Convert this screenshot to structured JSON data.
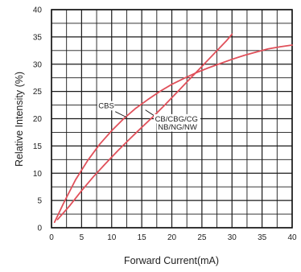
{
  "chart_data": {
    "type": "line",
    "xlabel": "Forward Current(mA)",
    "ylabel": "Relative Intensity (%)",
    "xlim": [
      0,
      40
    ],
    "ylim": [
      0,
      40
    ],
    "xticks": [
      "0",
      "5",
      "10",
      "15",
      "20",
      "25",
      "30",
      "35",
      "40"
    ],
    "yticks": [
      "0",
      "5",
      "10",
      "15",
      "20",
      "25",
      "30",
      "35",
      "40"
    ],
    "grid": true,
    "line_color": "#e0505a",
    "series": [
      {
        "name": "CBS",
        "x": [
          0.5,
          2,
          4,
          6,
          8,
          10,
          12,
          14,
          16,
          18,
          20,
          22,
          24,
          26,
          28,
          30,
          32,
          34,
          36,
          38,
          40
        ],
        "y": [
          1,
          4.5,
          8.8,
          12.3,
          15.3,
          17.8,
          20,
          21.9,
          23.5,
          25,
          26.3,
          27.4,
          28.4,
          29.3,
          30.1,
          30.9,
          31.6,
          32.2,
          32.8,
          33.2,
          33.5
        ]
      },
      {
        "name": "CB/CBG/CG NB/NG/NW",
        "x": [
          1,
          3,
          5,
          7,
          9,
          11,
          13,
          15,
          17,
          19,
          21,
          23,
          25,
          27,
          29,
          30
        ],
        "y": [
          1.5,
          4,
          6.8,
          9.4,
          11.8,
          14.1,
          16.3,
          18.4,
          20.5,
          22.7,
          25,
          27.3,
          29.6,
          31.9,
          34.2,
          35.5
        ]
      }
    ],
    "annotations": [
      {
        "text": "CBS",
        "x": 7.8,
        "y": 21.9
      },
      {
        "text": "CB/CBG/CG",
        "x": 17.2,
        "y": 19.5
      },
      {
        "text": "NB/NG/NW",
        "x": 17.7,
        "y": 18.0
      }
    ]
  }
}
